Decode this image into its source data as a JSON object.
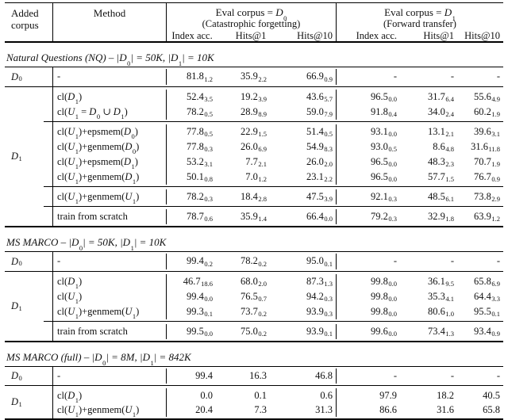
{
  "page": {
    "background": "#ffffff",
    "text_color": "#111111",
    "rule_color": "#000000"
  },
  "header": {
    "added_corpus": "Added corpus",
    "method": "Method",
    "eval_blocks": [
      {
        "title": "Eval corpus = D_0",
        "subtitle": "(Catastrophic forgetting)"
      },
      {
        "title": "Eval corpus = D_1",
        "subtitle": "(Forward transfer)"
      }
    ],
    "metrics": [
      "Index acc.",
      "Hits@1",
      "Hits@10"
    ]
  },
  "sections": [
    {
      "title": "Natural Questions (NQ) – |D_0| = 50K, |D_1| = 10K",
      "blocks": [
        {
          "corpus": "D_0",
          "groups": [
            [
              {
                "method": "-",
                "values": [
                  "81.8_1.2",
                  "35.9_2.2",
                  "66.9_0.9",
                  "-",
                  "-",
                  "-"
                ]
              }
            ]
          ]
        },
        {
          "corpus": "D_1",
          "groups": [
            [
              {
                "method": "cl(D_1)",
                "values": [
                  "52.4_3.5",
                  "19.2_3.9",
                  "43.6_5.7",
                  "96.5_0.0",
                  "31.7_6.4",
                  "55.6_4.9"
                ]
              },
              {
                "method": "cl(U_1 = D_0 ∪ D_1)",
                "values": [
                  "78.2_0.5",
                  "28.9_8.9",
                  "59.0_7.9",
                  "91.8_0.4",
                  "34.0_2.4",
                  "60.2_1.9"
                ]
              }
            ],
            [
              {
                "method": "cl(U_1)+epsmem(D_0)",
                "values": [
                  "77.8_0.5",
                  "22.9_1.5",
                  "51.4_0.5",
                  "93.1_0.0",
                  "13.1_2.1",
                  "39.6_3.1"
                ]
              },
              {
                "method": "cl(U_1)+genmem(D_0)",
                "values": [
                  "77.8_0.3",
                  "26.0_6.9",
                  "54.9_8.3",
                  "93.0_0.5",
                  "8.6_4.8",
                  "31.6_11.8"
                ]
              },
              {
                "method": "cl(U_1)+epsmem(D_1)",
                "values": [
                  "53.2_3.1",
                  "7.7_2.1",
                  "26.0_2.0",
                  "96.5_0.0",
                  "48.3_2.3",
                  "70.7_1.9"
                ]
              },
              {
                "method": "cl(U_1)+genmem(D_1)",
                "values": [
                  "50.1_0.8",
                  "7.0_1.2",
                  "23.1_2.2",
                  "96.5_0.0",
                  "57.7_1.5",
                  "76.7_0.9"
                ]
              }
            ],
            [
              {
                "method": "cl(U_1)+genmem(U_1)",
                "values": [
                  "78.2_0.3",
                  "18.4_2.8",
                  "47.5_3.9",
                  "92.1_0.3",
                  "48.5_6.1",
                  "73.8_2.9"
                ]
              }
            ],
            [
              {
                "method": "train from scratch",
                "values": [
                  "78.7_0.6",
                  "35.9_1.4",
                  "66.4_0.0",
                  "79.2_0.3",
                  "32.9_1.8",
                  "63.9_1.2"
                ]
              }
            ]
          ]
        }
      ]
    },
    {
      "title": "MS MARCO – |D_0| = 50K, |D_1| = 10K",
      "blocks": [
        {
          "corpus": "D_0",
          "groups": [
            [
              {
                "method": "-",
                "values": [
                  "99.4_0.2",
                  "78.2_0.2",
                  "95.0_0.1",
                  "-",
                  "-",
                  "-"
                ]
              }
            ]
          ]
        },
        {
          "corpus": "D_1",
          "groups": [
            [
              {
                "method": "cl(D_1)",
                "values": [
                  "46.7_18.6",
                  "68.0_2.0",
                  "87.3_1.3",
                  "99.8_0.0",
                  "36.1_9.5",
                  "65.8_6.9"
                ]
              },
              {
                "method": "cl(U_1)",
                "values": [
                  "99.4_0.0",
                  "76.5_0.7",
                  "94.2_0.3",
                  "99.8_0.0",
                  "35.3_4.1",
                  "64.4_3.3"
                ]
              },
              {
                "method": "cl(U_1)+genmem(U_1)",
                "values": [
                  "99.3_0.1",
                  "73.7_0.2",
                  "93.9_0.3",
                  "99.8_0.0",
                  "80.6_1.0",
                  "95.5_0.1"
                ]
              }
            ],
            [
              {
                "method": "train from scratch",
                "values": [
                  "99.5_0.0",
                  "75.0_0.2",
                  "93.9_0.1",
                  "99.6_0.0",
                  "73.4_1.3",
                  "93.4_0.9"
                ]
              }
            ]
          ]
        }
      ]
    },
    {
      "title": "MS MARCO (full) – |D_0| = 8M, |D_1| = 842K",
      "blocks": [
        {
          "corpus": "D_0",
          "groups": [
            [
              {
                "method": "-",
                "values": [
                  "99.4",
                  "16.3",
                  "46.8",
                  "-",
                  "-",
                  "-"
                ]
              }
            ]
          ]
        },
        {
          "corpus": "D_1",
          "groups": [
            [
              {
                "method": "cl(D_1)",
                "values": [
                  "0.0",
                  "0.1",
                  "0.6",
                  "97.9",
                  "18.2",
                  "40.5"
                ]
              },
              {
                "method": "cl(U_1)+genmem(U_1)",
                "values": [
                  "20.4",
                  "7.3",
                  "31.3",
                  "86.6",
                  "31.6",
                  "65.8"
                ]
              }
            ]
          ]
        }
      ]
    }
  ]
}
